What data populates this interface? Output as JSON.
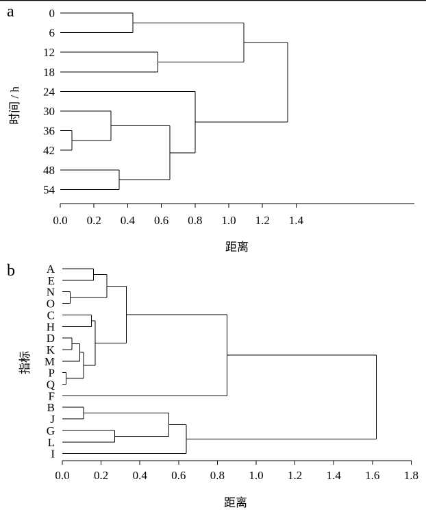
{
  "chart_data": [
    {
      "type": "dendrogram",
      "panel_label": "a",
      "ylabel": "时间 / h",
      "xlabel": "距离",
      "xlim": [
        0,
        1.4
      ],
      "xticks": [
        "0.0",
        "0.2",
        "0.4",
        "0.6",
        "0.8",
        "1.0",
        "1.2",
        "1.4"
      ],
      "leaves": [
        "0",
        "6",
        "12",
        "18",
        "24",
        "30",
        "36",
        "42",
        "48",
        "54"
      ],
      "merges": [
        {
          "left": "36",
          "right": "42",
          "distance": 0.07
        },
        {
          "left": "30",
          "right": "36+42",
          "distance": 0.3
        },
        {
          "left": "48",
          "right": "54",
          "distance": 0.35
        },
        {
          "left": "0",
          "right": "6",
          "distance": 0.43
        },
        {
          "left": "12",
          "right": "18",
          "distance": 0.58
        },
        {
          "left": "30+36+42",
          "right": "48+54",
          "distance": 0.65
        },
        {
          "left": "24",
          "right": "30+36+42+48+54",
          "distance": 0.8
        },
        {
          "left": "0+6",
          "right": "12+18",
          "distance": 1.09
        },
        {
          "left": "0+6+12+18",
          "right": "24+30+36+42+48+54",
          "distance": 1.35
        }
      ]
    },
    {
      "type": "dendrogram",
      "panel_label": "b",
      "ylabel": "指标",
      "xlabel": "距离",
      "xlim": [
        0,
        1.8
      ],
      "xticks": [
        "0.0",
        "0.2",
        "0.4",
        "0.6",
        "0.8",
        "1.0",
        "1.2",
        "1.4",
        "1.6",
        "1.8"
      ],
      "leaves": [
        "A",
        "E",
        "N",
        "O",
        "C",
        "H",
        "D",
        "K",
        "M",
        "P",
        "Q",
        "F",
        "B",
        "J",
        "G",
        "L",
        "I"
      ],
      "merges": [
        {
          "left": "P",
          "right": "Q",
          "distance": 0.02
        },
        {
          "left": "N",
          "right": "O",
          "distance": 0.04
        },
        {
          "left": "D",
          "right": "K",
          "distance": 0.05
        },
        {
          "left": "D+K",
          "right": "M",
          "distance": 0.09
        },
        {
          "left": "D+K+M",
          "right": "P+Q",
          "distance": 0.11
        },
        {
          "left": "B",
          "right": "J",
          "distance": 0.11
        },
        {
          "left": "C",
          "right": "H",
          "distance": 0.15
        },
        {
          "left": "A",
          "right": "E",
          "distance": 0.16
        },
        {
          "left": "C+H",
          "right": "D+K+M+P+Q",
          "distance": 0.17
        },
        {
          "left": "A+E",
          "right": "N+O",
          "distance": 0.23
        },
        {
          "left": "G",
          "right": "L",
          "distance": 0.27
        },
        {
          "left": "A+E+N+O",
          "right": "C+H+D+K+M+P+Q",
          "distance": 0.33
        },
        {
          "left": "B+J",
          "right": "G+L",
          "distance": 0.55
        },
        {
          "left": "B+J+G+L",
          "right": "I",
          "distance": 0.64
        },
        {
          "left": "A+E+N+O+C+H+D+K+M+P+Q",
          "right": "F",
          "distance": 0.85
        },
        {
          "left": "A+E+N+O+C+H+D+K+M+P+Q+F",
          "right": "B+J+G+L+I",
          "distance": 1.62
        }
      ]
    }
  ]
}
